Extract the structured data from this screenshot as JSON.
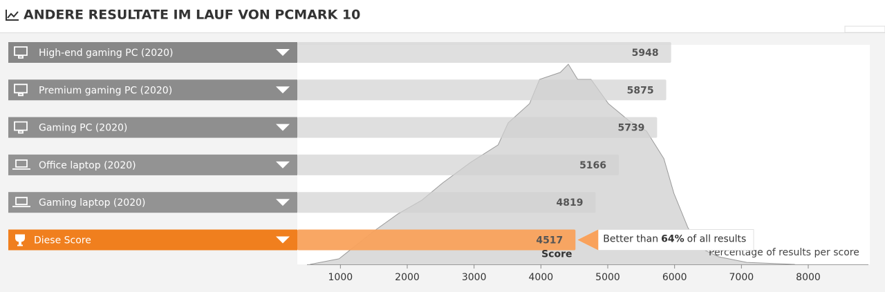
{
  "chart_data": {
    "type": "bar",
    "orientation": "horizontal",
    "title": "ANDERE RESULTATE IM LAUF VON PCMARK 10",
    "categories": [
      "High-end gaming PC (2020)",
      "Premium gaming PC (2020)",
      "Gaming PC (2020)",
      "Office laptop (2020)",
      "Gaming laptop (2020)",
      "Diese Score"
    ],
    "values": [
      5948,
      5875,
      5739,
      5166,
      4819,
      4517
    ],
    "colors": [
      "#d2d2d2",
      "#d2d2d2",
      "#d2d2d2",
      "#d2d2d2",
      "#d2d2d2",
      "#f9a25c"
    ],
    "label_colors": [
      "#878787",
      "#8c8c8c",
      "#8f8f8f",
      "#939393",
      "#939393",
      "#f07f1e"
    ],
    "xlim": [
      500,
      8900
    ],
    "xticks": [
      1000,
      2000,
      3000,
      4000,
      5000,
      6000,
      7000,
      8000
    ],
    "score_label": "Score",
    "callout": [
      "Better than",
      "64%",
      "of all results"
    ],
    "distribution": {
      "label": "Percentage of results per score",
      "color": "#bdbdbd",
      "x": [
        545,
        980,
        1500,
        1860,
        2220,
        2530,
        2950,
        3360,
        3510,
        3830,
        3980,
        4290,
        4410,
        4550,
        4750,
        5010,
        5320,
        5580,
        5840,
        5990,
        6200,
        6400,
        6660,
        7080,
        7800
      ],
      "y": [
        0,
        2.8,
        16.6,
        25.2,
        32.1,
        40.7,
        51,
        59.7,
        70.7,
        80.3,
        92.4,
        95.9,
        100,
        92.4,
        92.4,
        80.3,
        71.7,
        66.6,
        52.8,
        35.5,
        18.3,
        7.9,
        3.8,
        1,
        0
      ],
      "ylim": [
        0,
        100
      ]
    }
  }
}
